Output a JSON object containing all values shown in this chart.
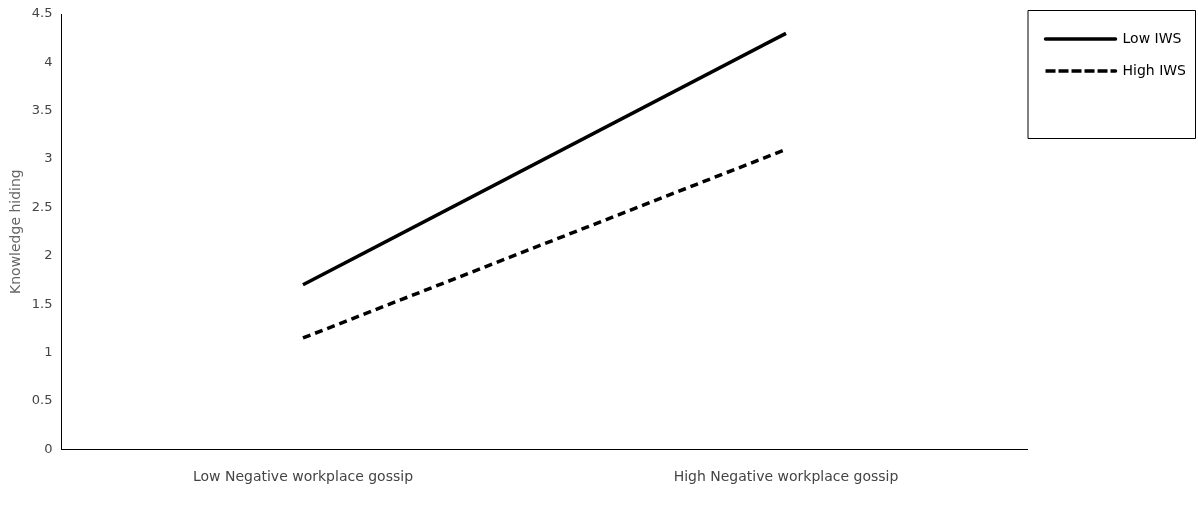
{
  "chart_data": {
    "type": "line",
    "ylabel": "Knowledge hiding",
    "categories": [
      "Low Negative workplace gossip",
      "High Negative workplace gossip"
    ],
    "series": [
      {
        "name": "Low IWS",
        "color": "#000000",
        "line_style": "solid",
        "values": [
          1.7,
          4.3
        ]
      },
      {
        "name": "High IWS",
        "color": "#000000",
        "line_style": "dashed",
        "values": [
          1.15,
          3.1
        ]
      }
    ],
    "ylim": [
      0,
      4.5
    ],
    "yticks": [
      0,
      0.5,
      1,
      1.5,
      2,
      2.5,
      3,
      3.5,
      4,
      4.5
    ],
    "grid": false,
    "legend": "right",
    "marker": "none"
  }
}
